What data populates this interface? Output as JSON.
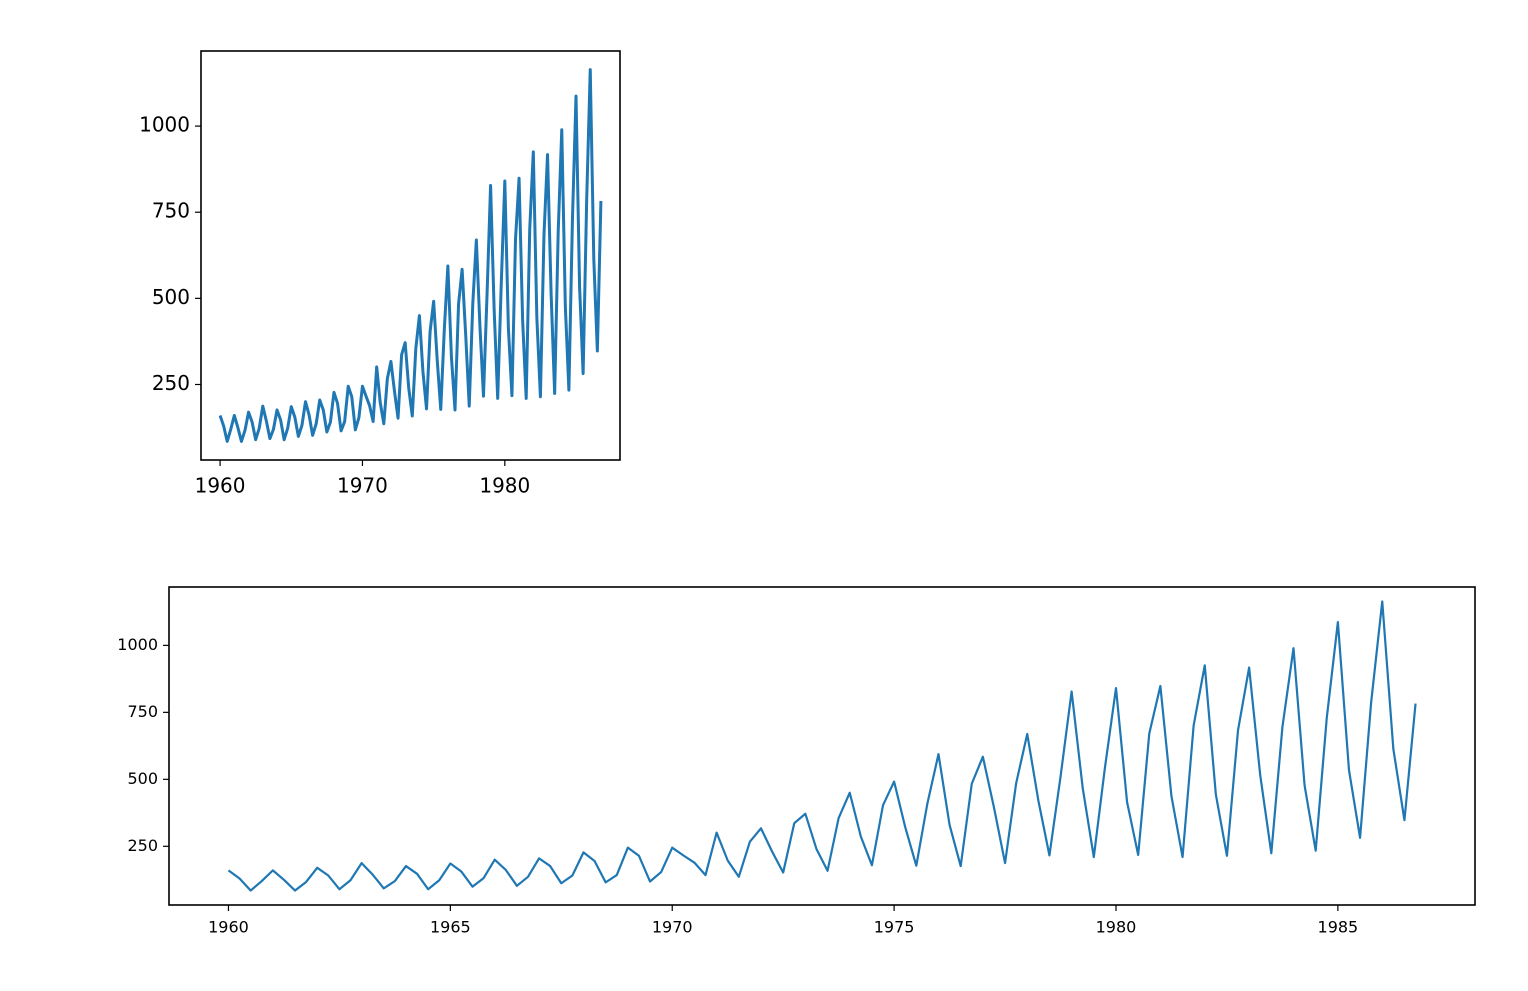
{
  "chart_data": [
    {
      "type": "line",
      "x": [
        1960,
        1960.25,
        1960.5,
        1960.75,
        1961,
        1961.25,
        1961.5,
        1961.75,
        1962,
        1962.25,
        1962.5,
        1962.75,
        1963,
        1963.25,
        1963.5,
        1963.75,
        1964,
        1964.25,
        1964.5,
        1964.75,
        1965,
        1965.25,
        1965.5,
        1965.75,
        1966,
        1966.25,
        1966.5,
        1966.75,
        1967,
        1967.25,
        1967.5,
        1967.75,
        1968,
        1968.25,
        1968.5,
        1968.75,
        1969,
        1969.25,
        1969.5,
        1969.75,
        1970,
        1970.25,
        1970.5,
        1970.75,
        1971,
        1971.25,
        1971.5,
        1971.75,
        1972,
        1972.25,
        1972.5,
        1972.75,
        1973,
        1973.25,
        1973.5,
        1973.75,
        1974,
        1974.25,
        1974.5,
        1974.75,
        1975,
        1975.25,
        1975.5,
        1975.75,
        1976,
        1976.25,
        1976.5,
        1976.75,
        1977,
        1977.25,
        1977.5,
        1977.75,
        1978,
        1978.25,
        1978.5,
        1978.75,
        1979,
        1979.25,
        1979.5,
        1979.75,
        1980,
        1980.25,
        1980.5,
        1980.75,
        1981,
        1981.25,
        1981.5,
        1981.75,
        1982,
        1982.25,
        1982.5,
        1982.75,
        1983,
        1983.25,
        1983.5,
        1983.75,
        1984,
        1984.25,
        1984.5,
        1984.75,
        1985,
        1985.25,
        1985.5,
        1985.75,
        1986,
        1986.25,
        1986.5,
        1986.75
      ],
      "series": [
        {
          "color": "#1f77b4",
          "values": [
            160.1,
            129.7,
            84.8,
            120.1,
            160.1,
            124.9,
            84.8,
            116.9,
            169.7,
            140.9,
            89.7,
            123.3,
            187.3,
            144.1,
            92.9,
            120.1,
            176.1,
            147.3,
            89.7,
            123.3,
            185.7,
            155.3,
            99.3,
            131.3,
            200.1,
            161.7,
            102.5,
            136.1,
            204.9,
            176.1,
            112.1,
            140.9,
            227.3,
            195.3,
            115.3,
            142.5,
            244.9,
            214.5,
            118.5,
            153.7,
            244.9,
            216.1,
            188.9,
            142.5,
            301.0,
            196.9,
            136.1,
            267.3,
            317.0,
            230.5,
            152.1,
            336.2,
            371.4,
            240.1,
            158.5,
            355.4,
            449.9,
            286.6,
            179.3,
            403.4,
            491.5,
            321.8,
            177.7,
            409.8,
            593.9,
            329.8,
            176.1,
            483.5,
            584.3,
            395.4,
            187.3,
            485.1,
            669.2,
            421.0,
            216.1,
            509.1,
            827.7,
            467.5,
            209.7,
            542.7,
            840.5,
            414.6,
            217.7,
            670.8,
            848.5,
            437.0,
            209.7,
            701.2,
            925.3,
            443.4,
            214.5,
            683.6,
            917.3,
            515.5,
            224.1,
            694.8,
            989.4,
            477.1,
            233.7,
            730.0,
            1087.0,
            534.7,
            281.8,
            787.6,
            1163.9,
            613.1,
            347.4,
            782.8
          ]
        }
      ],
      "xlim": [
        1958.66,
        1988.09
      ],
      "ylim": [
        30.85,
        1217.9
      ],
      "xticks": [
        1960,
        1970,
        1980
      ],
      "yticks": [
        250,
        500,
        750,
        1000
      ]
    },
    {
      "type": "line",
      "x": [
        1960,
        1960.25,
        1960.5,
        1960.75,
        1961,
        1961.25,
        1961.5,
        1961.75,
        1962,
        1962.25,
        1962.5,
        1962.75,
        1963,
        1963.25,
        1963.5,
        1963.75,
        1964,
        1964.25,
        1964.5,
        1964.75,
        1965,
        1965.25,
        1965.5,
        1965.75,
        1966,
        1966.25,
        1966.5,
        1966.75,
        1967,
        1967.25,
        1967.5,
        1967.75,
        1968,
        1968.25,
        1968.5,
        1968.75,
        1969,
        1969.25,
        1969.5,
        1969.75,
        1970,
        1970.25,
        1970.5,
        1970.75,
        1971,
        1971.25,
        1971.5,
        1971.75,
        1972,
        1972.25,
        1972.5,
        1972.75,
        1973,
        1973.25,
        1973.5,
        1973.75,
        1974,
        1974.25,
        1974.5,
        1974.75,
        1975,
        1975.25,
        1975.5,
        1975.75,
        1976,
        1976.25,
        1976.5,
        1976.75,
        1977,
        1977.25,
        1977.5,
        1977.75,
        1978,
        1978.25,
        1978.5,
        1978.75,
        1979,
        1979.25,
        1979.5,
        1979.75,
        1980,
        1980.25,
        1980.5,
        1980.75,
        1981,
        1981.25,
        1981.5,
        1981.75,
        1982,
        1982.25,
        1982.5,
        1982.75,
        1983,
        1983.25,
        1983.5,
        1983.75,
        1984,
        1984.25,
        1984.5,
        1984.75,
        1985,
        1985.25,
        1985.5,
        1985.75,
        1986,
        1986.25,
        1986.5,
        1986.75
      ],
      "series": [
        {
          "color": "#1f77b4",
          "values": [
            160.1,
            129.7,
            84.8,
            120.1,
            160.1,
            124.9,
            84.8,
            116.9,
            169.7,
            140.9,
            89.7,
            123.3,
            187.3,
            144.1,
            92.9,
            120.1,
            176.1,
            147.3,
            89.7,
            123.3,
            185.7,
            155.3,
            99.3,
            131.3,
            200.1,
            161.7,
            102.5,
            136.1,
            204.9,
            176.1,
            112.1,
            140.9,
            227.3,
            195.3,
            115.3,
            142.5,
            244.9,
            214.5,
            118.5,
            153.7,
            244.9,
            216.1,
            188.9,
            142.5,
            301.0,
            196.9,
            136.1,
            267.3,
            317.0,
            230.5,
            152.1,
            336.2,
            371.4,
            240.1,
            158.5,
            355.4,
            449.9,
            286.6,
            179.3,
            403.4,
            491.5,
            321.8,
            177.7,
            409.8,
            593.9,
            329.8,
            176.1,
            483.5,
            584.3,
            395.4,
            187.3,
            485.1,
            669.2,
            421.0,
            216.1,
            509.1,
            827.7,
            467.5,
            209.7,
            542.7,
            840.5,
            414.6,
            217.7,
            670.8,
            848.5,
            437.0,
            209.7,
            701.2,
            925.3,
            443.4,
            214.5,
            683.6,
            917.3,
            515.5,
            224.1,
            694.8,
            989.4,
            477.1,
            233.7,
            730.0,
            1087.0,
            534.7,
            281.8,
            787.6,
            1163.9,
            613.1,
            347.4,
            782.8
          ]
        }
      ],
      "xlim": [
        1958.66,
        1988.09
      ],
      "ylim": [
        30.85,
        1217.9
      ],
      "xticks": [
        1960,
        1965,
        1970,
        1975,
        1980,
        1985
      ],
      "yticks": [
        250,
        500,
        750,
        1000
      ]
    }
  ]
}
